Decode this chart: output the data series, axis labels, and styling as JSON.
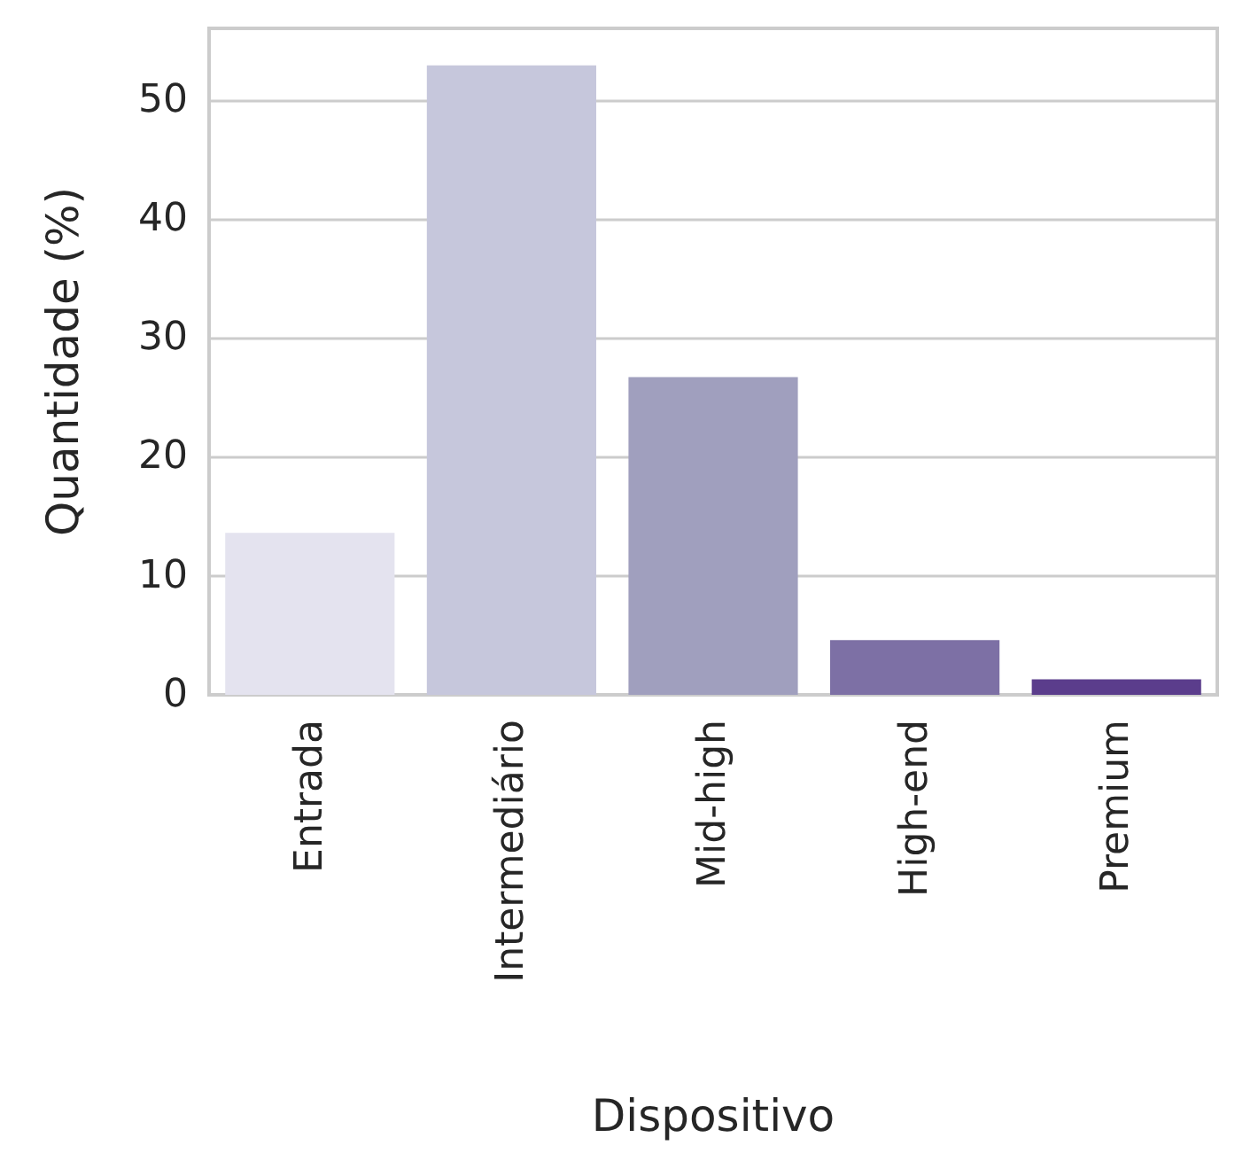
{
  "chart_data": {
    "type": "bar",
    "xlabel": "Dispositivo",
    "ylabel": "Quantidade (%)",
    "categories": [
      "Entrada",
      "Intermediário",
      "Mid-high",
      "High-end",
      "Premium"
    ],
    "values": [
      13.6,
      52.9,
      26.7,
      4.6,
      1.3
    ],
    "colors": [
      "#e4e3ef",
      "#c6c7dc",
      "#a09fbe",
      "#7d70a5",
      "#5b3d8c"
    ],
    "ylim": [
      0,
      56
    ],
    "yticks": [
      0,
      10,
      20,
      30,
      40,
      50
    ],
    "grid": "y"
  }
}
